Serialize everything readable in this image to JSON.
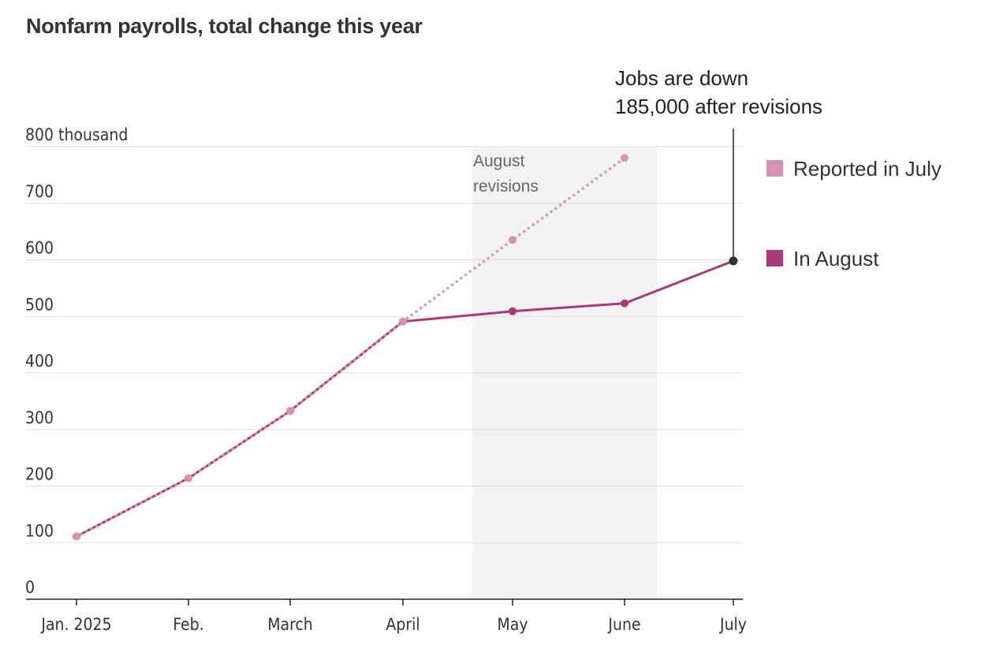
{
  "title": "Nonfarm payrolls, total change this year",
  "chart_data": {
    "type": "line",
    "title": "Nonfarm payrolls, total change this year",
    "categories": [
      "Jan. 2025",
      "Feb.",
      "March",
      "April",
      "May",
      "June",
      "July"
    ],
    "y_tick_labels": [
      "0",
      "100",
      "200",
      "300",
      "400",
      "500",
      "600",
      "700",
      "800 thousand"
    ],
    "y_tick_values": [
      0,
      100,
      200,
      300,
      400,
      500,
      600,
      700,
      800
    ],
    "ylim": [
      0,
      800
    ],
    "grid": true,
    "series": [
      {
        "name": "Reported in July",
        "color": "#d394b2",
        "style": "dotted",
        "values": [
          111,
          214,
          333,
          491,
          635,
          780,
          null
        ]
      },
      {
        "name": "In August",
        "color": "#a93a78",
        "style": "solid",
        "values": [
          111,
          214,
          333,
          491,
          509,
          523,
          598
        ]
      }
    ],
    "shaded_region": {
      "label_line1": "August",
      "label_line2": "revisions",
      "from_category": "April",
      "to_category": "June"
    },
    "annotation": {
      "line1": "Jobs are down",
      "line2": "185,000 after revisions",
      "category": "July",
      "value": 598
    },
    "legend": {
      "placement": "right",
      "items": [
        {
          "label": "Reported in July",
          "color": "#d394b2"
        },
        {
          "label": "In August",
          "color": "#a93a78"
        }
      ]
    }
  }
}
